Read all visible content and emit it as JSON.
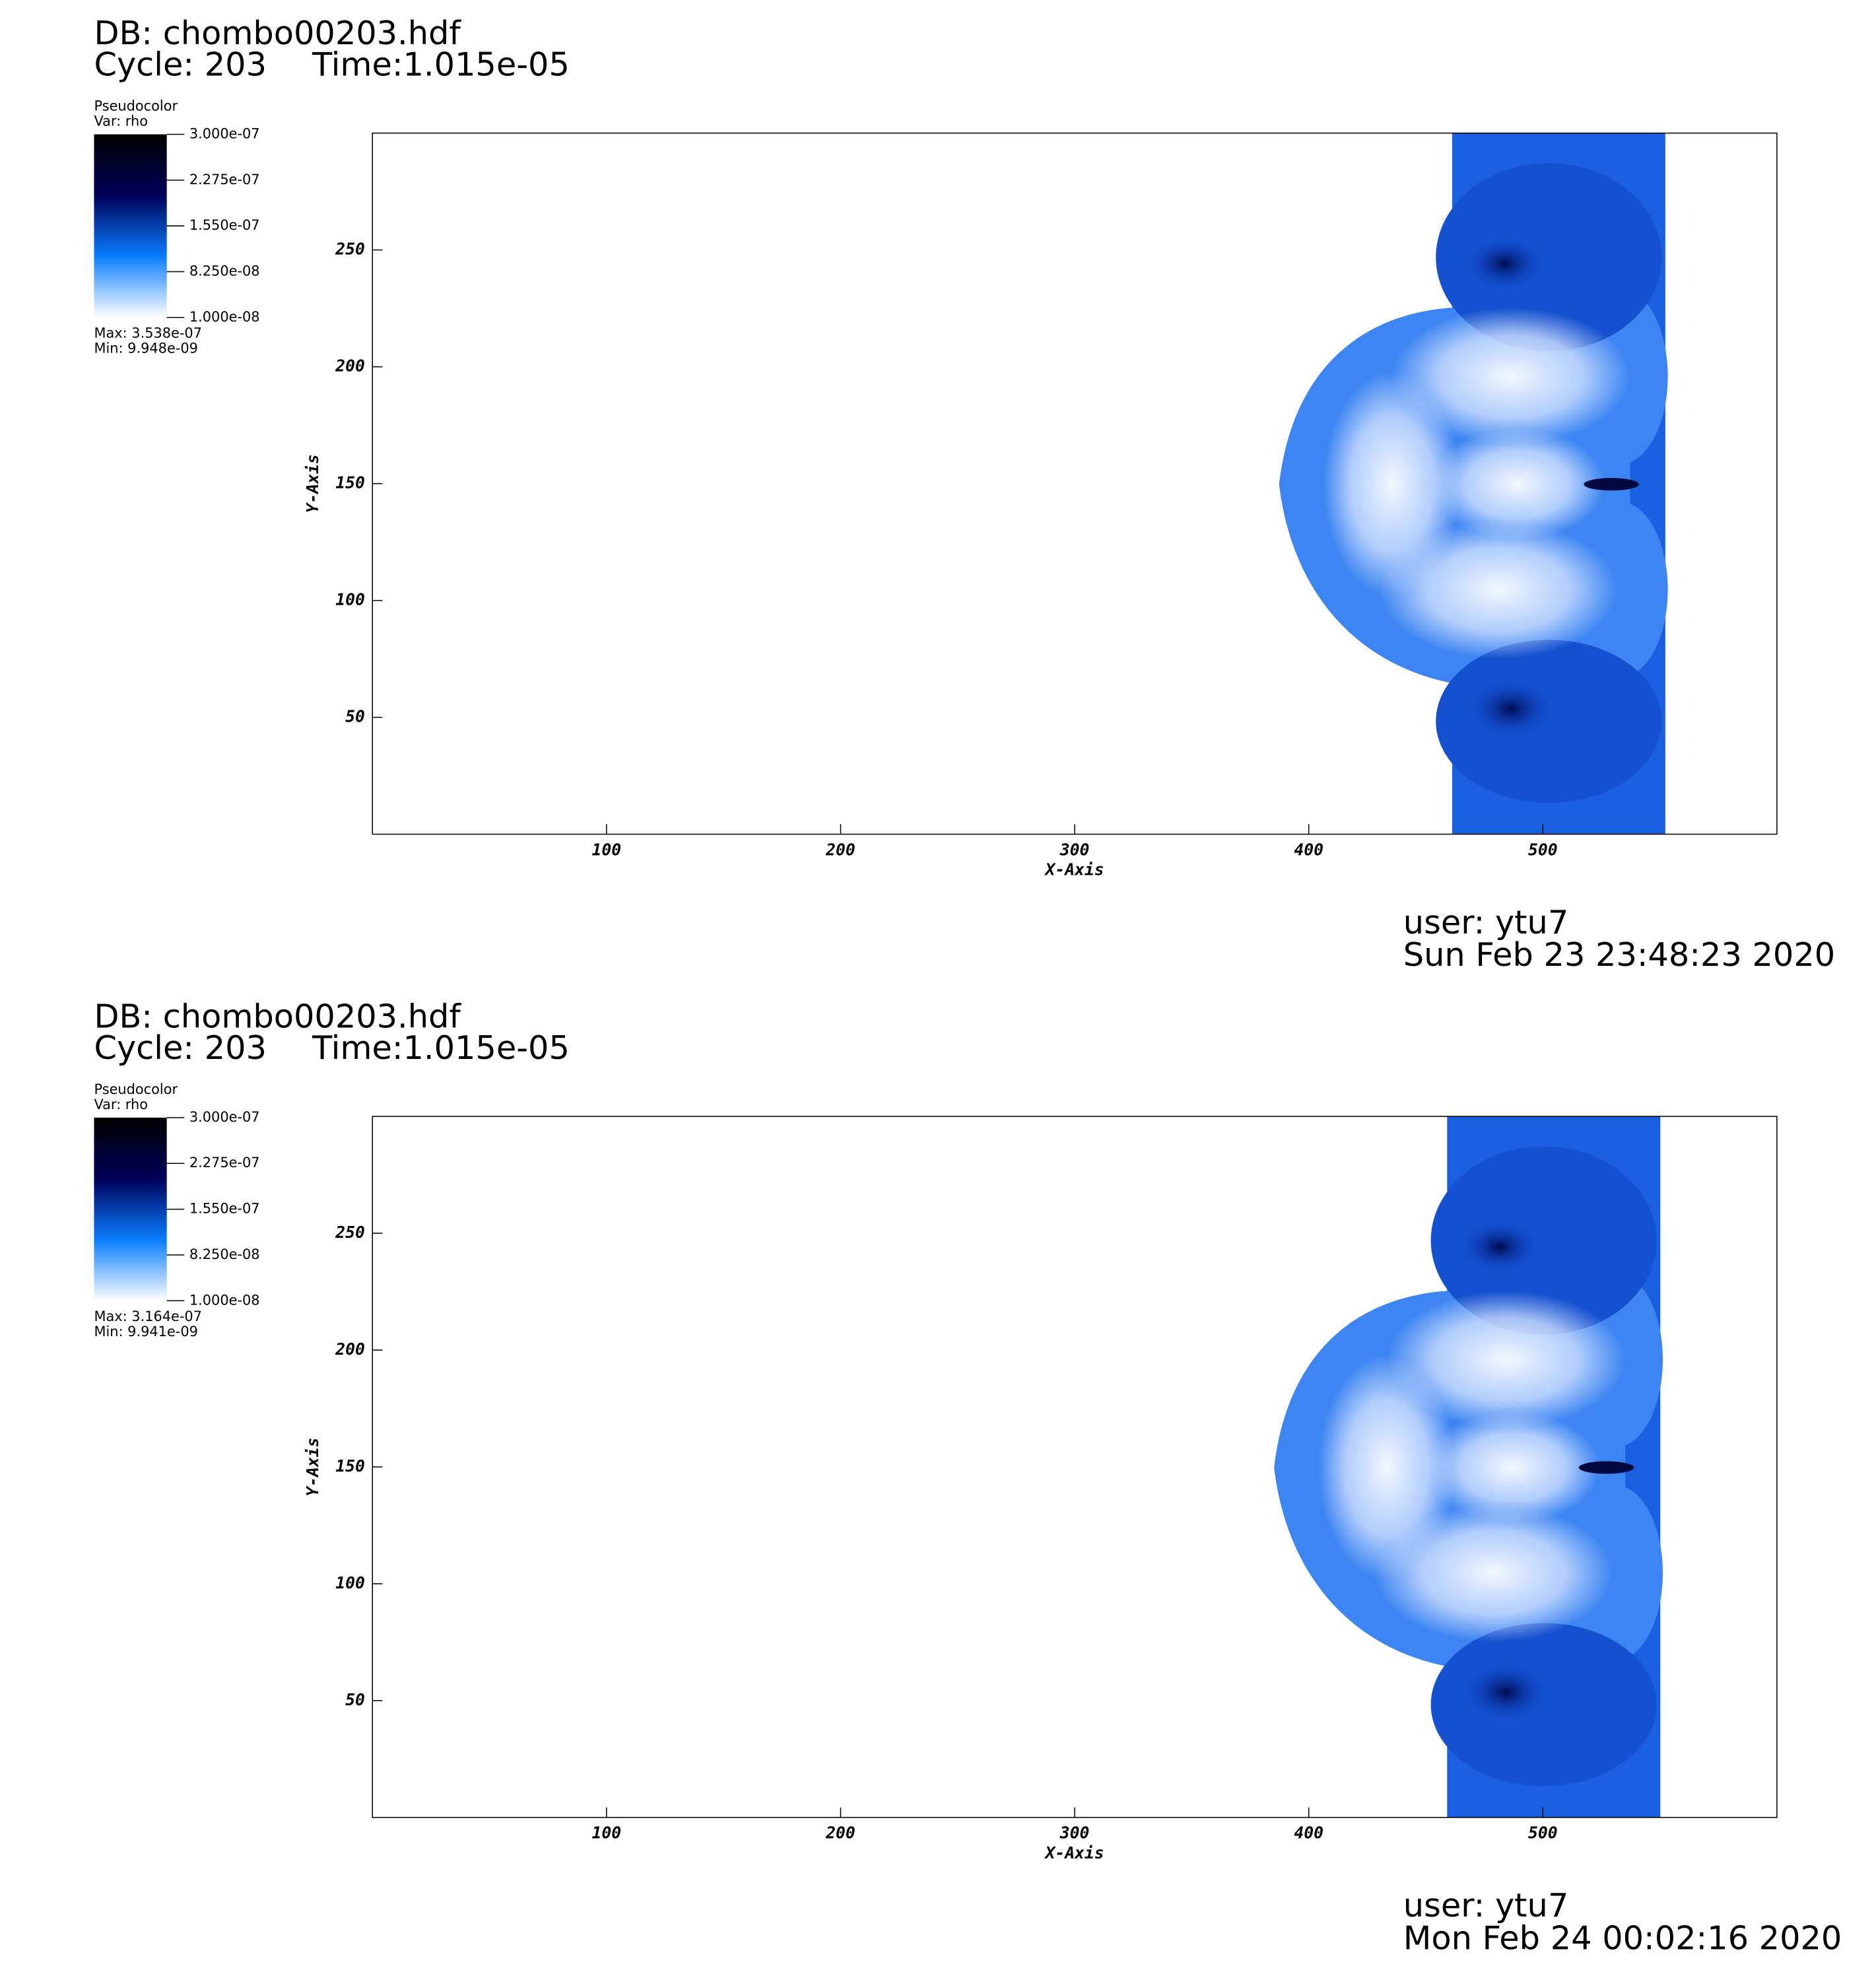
{
  "chart_data": [
    {
      "type": "pseudocolor",
      "db": "DB: chombo00203.hdf",
      "cycle": "Cycle: 203",
      "time": "Time:1.015e-05",
      "legend": {
        "title": "Pseudocolor",
        "var": "Var: rho",
        "clim": [
          1e-08,
          3e-07
        ],
        "ticks": [
          {
            "value": 3e-07,
            "label": "3.000e-07"
          },
          {
            "value": 2.275e-07,
            "label": "2.275e-07"
          },
          {
            "value": 1.55e-07,
            "label": "1.550e-07"
          },
          {
            "value": 8.25e-08,
            "label": "8.250e-08"
          },
          {
            "value": 1e-08,
            "label": "1.000e-08"
          }
        ],
        "max": "Max:  3.538e-07",
        "min": "Min:  9.948e-09",
        "colors": [
          "#ffffff",
          "#0a7dff",
          "#00005a",
          "#000000"
        ]
      },
      "xlabel": "X-Axis",
      "ylabel": "Y-Axis",
      "xlim": [
        0,
        600
      ],
      "ylim": [
        0,
        300
      ],
      "xticks": [
        100,
        200,
        300,
        400,
        500
      ],
      "yticks": [
        50,
        100,
        150,
        200,
        250
      ],
      "user": "user: ytu7",
      "date": "Sun Feb 23 23:48:23 2020"
    },
    {
      "type": "pseudocolor",
      "db": "DB: chombo00203.hdf",
      "cycle": "Cycle: 203",
      "time": "Time:1.015e-05",
      "legend": {
        "title": "Pseudocolor",
        "var": "Var: rho",
        "clim": [
          1e-08,
          3e-07
        ],
        "ticks": [
          {
            "value": 3e-07,
            "label": "3.000e-07"
          },
          {
            "value": 2.275e-07,
            "label": "2.275e-07"
          },
          {
            "value": 1.55e-07,
            "label": "1.550e-07"
          },
          {
            "value": 8.25e-08,
            "label": "8.250e-08"
          },
          {
            "value": 1e-08,
            "label": "1.000e-08"
          }
        ],
        "max": "Max:  3.164e-07",
        "min": "Min:  9.941e-09",
        "colors": [
          "#ffffff",
          "#0a7dff",
          "#00005a",
          "#000000"
        ]
      },
      "xlabel": "X-Axis",
      "ylabel": "Y-Axis",
      "xlim": [
        0,
        600
      ],
      "ylim": [
        0,
        300
      ],
      "xticks": [
        100,
        200,
        300,
        400,
        500
      ],
      "yticks": [
        50,
        100,
        150,
        200,
        250
      ],
      "user": "user: ytu7",
      "date": "Mon Feb 24 00:02:16 2020"
    }
  ]
}
